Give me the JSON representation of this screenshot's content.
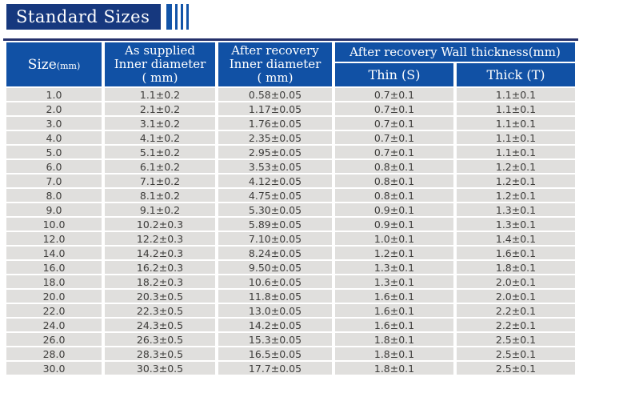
{
  "title": {
    "label": "Standard Sizes"
  },
  "colors": {
    "title_bg": "#16377E",
    "accent_bar": "#1254A8",
    "header_bg": "#1151A5",
    "top_rule": "#25316B",
    "row_bg": "#E0DFDD",
    "data_text": "#3E3D3B"
  },
  "table": {
    "headers": {
      "size_main": "Size",
      "size_unit": "(mm)",
      "as_supplied_line1": "As supplied",
      "as_supplied_line2": "Inner diameter",
      "as_supplied_line3": "( mm)",
      "after_recovery_line1": "After recovery",
      "after_recovery_line2": "Inner diameter",
      "after_recovery_line3": "( mm)",
      "wall_thickness": "After recovery Wall thickness(mm)",
      "thin": "Thin  (S)",
      "thick": "Thick  (T)"
    },
    "rows": [
      [
        "1.0",
        "1.1±0.2",
        "0.58±0.05",
        "0.7±0.1",
        "1.1±0.1"
      ],
      [
        "2.0",
        "2.1±0.2",
        "1.17±0.05",
        "0.7±0.1",
        "1.1±0.1"
      ],
      [
        "3.0",
        "3.1±0.2",
        "1.76±0.05",
        "0.7±0.1",
        "1.1±0.1"
      ],
      [
        "4.0",
        "4.1±0.2",
        "2.35±0.05",
        "0.7±0.1",
        "1.1±0.1"
      ],
      [
        "5.0",
        "5.1±0.2",
        "2.95±0.05",
        "0.7±0.1",
        "1.1±0.1"
      ],
      [
        "6.0",
        "6.1±0.2",
        "3.53±0.05",
        "0.8±0.1",
        "1.2±0.1"
      ],
      [
        "7.0",
        "7.1±0.2",
        "4.12±0.05",
        "0.8±0.1",
        "1.2±0.1"
      ],
      [
        "8.0",
        "8.1±0.2",
        "4.75±0.05",
        "0.8±0.1",
        "1.2±0.1"
      ],
      [
        "9.0",
        "9.1±0.2",
        "5.30±0.05",
        "0.9±0.1",
        "1.3±0.1"
      ],
      [
        "10.0",
        "10.2±0.3",
        "5.89±0.05",
        "0.9±0.1",
        "1.3±0.1"
      ],
      [
        "12.0",
        "12.2±0.3",
        "7.10±0.05",
        "1.0±0.1",
        "1.4±0.1"
      ],
      [
        "14.0",
        "14.2±0.3",
        "8.24±0.05",
        "1.2±0.1",
        "1.6±0.1"
      ],
      [
        "16.0",
        "16.2±0.3",
        "9.50±0.05",
        "1.3±0.1",
        "1.8±0.1"
      ],
      [
        "18.0",
        "18.2±0.3",
        "10.6±0.05",
        "1.3±0.1",
        "2.0±0.1"
      ],
      [
        "20.0",
        "20.3±0.5",
        "11.8±0.05",
        "1.6±0.1",
        "2.0±0.1"
      ],
      [
        "22.0",
        "22.3±0.5",
        "13.0±0.05",
        "1.6±0.1",
        "2.2±0.1"
      ],
      [
        "24.0",
        "24.3±0.5",
        "14.2±0.05",
        "1.6±0.1",
        "2.2±0.1"
      ],
      [
        "26.0",
        "26.3±0.5",
        "15.3±0.05",
        "1.8±0.1",
        "2.5±0.1"
      ],
      [
        "28.0",
        "28.3±0.5",
        "16.5±0.05",
        "1.8±0.1",
        "2.5±0.1"
      ],
      [
        "30.0",
        "30.3±0.5",
        "17.7±0.05",
        "1.8±0.1",
        "2.5±0.1"
      ]
    ]
  }
}
